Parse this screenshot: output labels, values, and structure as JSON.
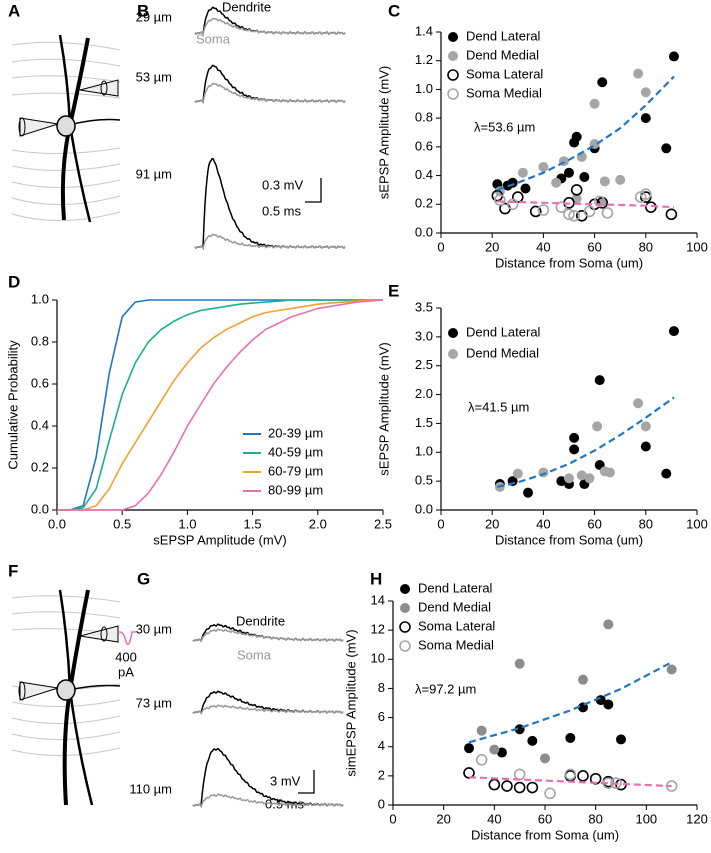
{
  "figure": {
    "panel_labels": [
      "A",
      "B",
      "C",
      "D",
      "E",
      "F",
      "G",
      "H"
    ],
    "B": {
      "distances": [
        "29 µm",
        "53 µm",
        "91 µm"
      ],
      "dendrite": "Dendrite",
      "soma": "Soma",
      "scale_v": "0.3 mV",
      "scale_t": "0.5 ms"
    },
    "F": {
      "current": "400",
      "current_unit": "pA"
    },
    "G": {
      "distances": [
        "30 µm",
        "73 µm",
        "110 µm"
      ],
      "dendrite": "Dendrite",
      "soma": "Soma",
      "scale_v": "3 mV",
      "scale_t": "0.5 ms"
    }
  },
  "chart_data": [
    {
      "type": "scatter",
      "xlabel": "Distance from Soma (um)",
      "ylabel": "sEPSP Amplitude (mV)",
      "annotation": "λ=53.6 µm",
      "legend": "upper left",
      "xlim": [
        0,
        100
      ],
      "xticks": [
        0,
        20,
        40,
        60,
        80,
        100
      ],
      "ylim": [
        0,
        1.4
      ],
      "yticks": [
        {
          "value": 0,
          "label": "0.0"
        },
        0.2,
        0.4,
        0.6,
        0.8,
        {
          "value": 1,
          "label": "1.0"
        },
        1.2,
        1.4
      ],
      "series": [
        {
          "name": "Dend Lateral",
          "color": "#000000",
          "filled": true,
          "x": [
            22,
            26,
            28,
            33,
            47,
            50,
            52,
            53,
            56,
            60,
            63,
            80,
            88,
            91
          ],
          "values": [
            0.34,
            0.33,
            0.35,
            0.31,
            0.38,
            0.42,
            0.63,
            0.67,
            0.39,
            0.59,
            1.05,
            0.8,
            0.59,
            1.23
          ]
        },
        {
          "name": "Dend Medial",
          "color": "#a6a6a6",
          "filled": true,
          "x": [
            23,
            32,
            40,
            45,
            48,
            53,
            55,
            60,
            60,
            64,
            70,
            77,
            80,
            63
          ],
          "values": [
            0.29,
            0.42,
            0.46,
            0.35,
            0.5,
            0.24,
            0.53,
            0.9,
            0.62,
            0.36,
            0.37,
            1.11,
            0.98,
            0.22
          ]
        },
        {
          "name": "Soma Lateral",
          "color": "#000000",
          "filled": false,
          "x": [
            22,
            25,
            30,
            37,
            50,
            53,
            55,
            60,
            63,
            80,
            82,
            90
          ],
          "values": [
            0.26,
            0.17,
            0.25,
            0.15,
            0.21,
            0.3,
            0.12,
            0.2,
            0.21,
            0.25,
            0.18,
            0.13
          ]
        },
        {
          "name": "Soma Medial",
          "color": "#a6a6a6",
          "filled": false,
          "x": [
            23,
            28,
            40,
            47,
            50,
            52,
            58,
            62,
            65,
            78,
            80
          ],
          "values": [
            0.23,
            0.2,
            0.16,
            0.18,
            0.13,
            0.12,
            0.15,
            0.22,
            0.14,
            0.25,
            0.27
          ]
        }
      ],
      "fits": [
        {
          "color": "#1f77c4",
          "x": [
            22,
            30,
            40,
            50,
            60,
            70,
            80,
            91
          ],
          "values": [
            0.3,
            0.35,
            0.42,
            0.51,
            0.61,
            0.73,
            0.89,
            1.09
          ]
        },
        {
          "color": "#e870b0",
          "x": [
            22,
            40,
            60,
            80,
            91
          ],
          "values": [
            0.22,
            0.21,
            0.2,
            0.19,
            0.18
          ]
        }
      ]
    },
    {
      "type": "line",
      "xlabel": "sEPSP Amplitude (mV)",
      "ylabel": "Cumulative Probability",
      "legend": "lower right",
      "xlim": [
        0,
        2.5
      ],
      "xticks": [
        {
          "value": 0,
          "label": "0.0"
        },
        0.5,
        {
          "value": 1,
          "label": "1.0"
        },
        1.5,
        {
          "value": 2,
          "label": "2.0"
        },
        2.5
      ],
      "ylim": [
        0,
        1
      ],
      "yticks": [
        {
          "value": 0,
          "label": "0.0"
        },
        0.2,
        0.4,
        0.6,
        0.8,
        {
          "value": 1,
          "label": "1.0"
        }
      ],
      "x": [
        0,
        0.1,
        0.2,
        0.3,
        0.4,
        0.5,
        0.6,
        0.7,
        0.8,
        0.9,
        1,
        1.1,
        1.2,
        1.3,
        1.4,
        1.5,
        1.6,
        1.7,
        1.8,
        1.9,
        2,
        2.1,
        2.2,
        2.3,
        2.4,
        2.5
      ],
      "series": [
        {
          "name": "20-39 µm",
          "color": "#1f77c4",
          "values": [
            0,
            0,
            0.02,
            0.25,
            0.65,
            0.92,
            0.99,
            1,
            1,
            1,
            1,
            1,
            1,
            1,
            1,
            1,
            1,
            1,
            1,
            1,
            1,
            1,
            1,
            1,
            1,
            1
          ]
        },
        {
          "name": "40-59 µm",
          "color": "#1bb08a",
          "values": [
            0,
            0,
            0.01,
            0.1,
            0.33,
            0.55,
            0.7,
            0.8,
            0.86,
            0.9,
            0.93,
            0.95,
            0.96,
            0.97,
            0.98,
            0.985,
            0.99,
            0.995,
            1,
            1,
            1,
            1,
            1,
            1,
            1,
            1
          ]
        },
        {
          "name": "60-79 µm",
          "color": "#f5a030",
          "values": [
            0,
            0,
            0,
            0.02,
            0.1,
            0.22,
            0.32,
            0.42,
            0.52,
            0.62,
            0.7,
            0.77,
            0.82,
            0.86,
            0.89,
            0.92,
            0.94,
            0.95,
            0.96,
            0.97,
            0.98,
            0.985,
            0.99,
            0.995,
            1,
            1
          ]
        },
        {
          "name": "80-99 µm",
          "color": "#e870b0",
          "values": [
            0,
            0,
            0,
            0,
            0,
            0,
            0.02,
            0.08,
            0.17,
            0.28,
            0.4,
            0.5,
            0.6,
            0.68,
            0.75,
            0.81,
            0.86,
            0.89,
            0.92,
            0.94,
            0.96,
            0.97,
            0.98,
            0.99,
            0.995,
            1
          ]
        }
      ]
    },
    {
      "type": "scatter",
      "xlabel": "Distance from Soma (um)",
      "ylabel": "sEPSP Amplitude (mV)",
      "annotation": "λ=41.5 µm",
      "legend": "upper left",
      "xlim": [
        0,
        100
      ],
      "xticks": [
        0,
        20,
        40,
        60,
        80,
        100
      ],
      "ylim": [
        0,
        3.5
      ],
      "yticks": [
        {
          "value": 0,
          "label": "0.0"
        },
        0.5,
        {
          "value": 1,
          "label": "1.0"
        },
        1.5,
        {
          "value": 2,
          "label": "2.0"
        },
        2.5,
        {
          "value": 3,
          "label": "3.0"
        },
        3.5
      ],
      "series": [
        {
          "name": "Dend Lateral",
          "color": "#000000",
          "filled": true,
          "x": [
            23,
            28,
            34,
            47,
            50,
            52,
            52,
            56,
            62,
            62,
            80,
            88,
            91
          ],
          "values": [
            0.45,
            0.5,
            0.3,
            0.5,
            0.45,
            1.25,
            1.05,
            0.45,
            2.25,
            0.78,
            1.1,
            0.63,
            3.1
          ]
        },
        {
          "name": "Dend Medial",
          "color": "#a6a6a6",
          "filled": true,
          "x": [
            23,
            30,
            40,
            50,
            55,
            58,
            61,
            64,
            66,
            77,
            80
          ],
          "values": [
            0.4,
            0.63,
            0.65,
            0.55,
            0.6,
            0.55,
            1.45,
            0.67,
            0.65,
            1.85,
            1.45
          ]
        }
      ],
      "fits": [
        {
          "color": "#1f77c4",
          "x": [
            22,
            30,
            40,
            50,
            60,
            70,
            80,
            91
          ],
          "values": [
            0.4,
            0.48,
            0.62,
            0.8,
            1.03,
            1.3,
            1.6,
            1.95
          ]
        }
      ]
    },
    {
      "type": "scatter",
      "xlabel": "Distance from Soma (um)",
      "ylabel": "simEPSP Amplitude (mV)",
      "annotation": "λ=97.2 µm",
      "legend": "upper left",
      "xlim": [
        0,
        120
      ],
      "xticks": [
        0,
        20,
        40,
        60,
        80,
        100,
        120
      ],
      "ylim": [
        0,
        14
      ],
      "yticks": [
        0,
        2,
        4,
        6,
        8,
        10,
        12,
        14
      ],
      "series": [
        {
          "name": "Dend Lateral",
          "color": "#000000",
          "filled": true,
          "x": [
            30,
            43,
            50,
            55,
            70,
            75,
            82,
            85,
            90
          ],
          "values": [
            3.9,
            3.6,
            5.2,
            4.4,
            4.6,
            6.7,
            7.2,
            6.9,
            4.5
          ]
        },
        {
          "name": "Dend Medial",
          "color": "#8c8c8c",
          "filled": true,
          "x": [
            35,
            40,
            50,
            60,
            75,
            85,
            110
          ],
          "values": [
            5.1,
            3.8,
            9.7,
            3.2,
            8.6,
            12.4,
            9.3
          ]
        },
        {
          "name": "Soma Lateral",
          "color": "#000000",
          "filled": false,
          "x": [
            30,
            40,
            45,
            50,
            55,
            70,
            75,
            80,
            85,
            90
          ],
          "values": [
            2.2,
            1.4,
            1.3,
            1.2,
            1.2,
            2,
            2,
            1.8,
            1.6,
            1.4
          ]
        },
        {
          "name": "Soma Medial",
          "color": "#a6a6a6",
          "filled": false,
          "x": [
            35,
            50,
            62,
            70,
            85,
            88,
            110
          ],
          "values": [
            3.1,
            2.1,
            0.8,
            2.1,
            1.5,
            1.5,
            1.3
          ]
        }
      ],
      "fits": [
        {
          "color": "#1f77c4",
          "x": [
            30,
            50,
            70,
            90,
            110
          ],
          "values": [
            4.3,
            5.28,
            6.49,
            7.97,
            9.8
          ]
        },
        {
          "color": "#e870b0",
          "x": [
            30,
            50,
            70,
            90,
            110
          ],
          "values": [
            1.9,
            1.75,
            1.6,
            1.45,
            1.3
          ]
        }
      ]
    }
  ]
}
